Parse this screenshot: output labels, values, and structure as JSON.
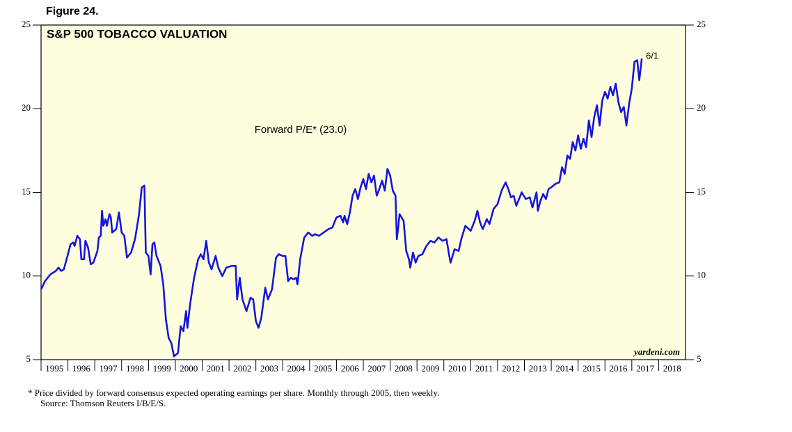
{
  "chart_data": {
    "type": "line",
    "figure_label": "Figure 24.",
    "title": "S&P 500 TOBACCO VALUATION",
    "annotation": "Forward P/E* (23.0)",
    "end_label": "6/1",
    "watermark": "yardeni.com",
    "footnotes": [
      "*  Price divided by forward consensus expected operating earnings per share. Monthly through 2005, then weekly.",
      "Source: Thomson Reuters I/B/E/S."
    ],
    "color": "#1515dc",
    "background": "#ffffe0",
    "xlim": [
      1995,
      2019
    ],
    "xticks": [
      1995,
      1996,
      1997,
      1998,
      1999,
      2000,
      2001,
      2002,
      2003,
      2004,
      2005,
      2006,
      2007,
      2008,
      2009,
      2010,
      2011,
      2012,
      2013,
      2014,
      2015,
      2016,
      2017,
      2018
    ],
    "ylim": [
      5,
      25
    ],
    "yticks": [
      5,
      10,
      15,
      20,
      25
    ],
    "x": [
      1995.0,
      1995.15,
      1995.35,
      1995.55,
      1995.65,
      1995.75,
      1995.85,
      1996.0,
      1996.1,
      1996.2,
      1996.25,
      1996.35,
      1996.45,
      1996.5,
      1996.6,
      1996.65,
      1996.75,
      1996.85,
      1996.95,
      1997.1,
      1997.15,
      1997.22,
      1997.27,
      1997.32,
      1997.4,
      1997.45,
      1997.55,
      1997.6,
      1997.65,
      1997.8,
      1997.9,
      1998.0,
      1998.1,
      1998.2,
      1998.35,
      1998.5,
      1998.65,
      1998.75,
      1998.85,
      1998.9,
      1999.0,
      1999.08,
      1999.15,
      1999.22,
      1999.3,
      1999.45,
      1999.55,
      1999.65,
      1999.75,
      1999.85,
      1999.95,
      2000.1,
      2000.2,
      2000.3,
      2000.4,
      2000.45,
      2000.55,
      2000.7,
      2000.85,
      2000.95,
      2001.05,
      2001.15,
      2001.25,
      2001.35,
      2001.5,
      2001.6,
      2001.75,
      2001.9,
      2002.1,
      2002.25,
      2002.3,
      2002.4,
      2002.5,
      2002.65,
      2002.8,
      2002.9,
      2003.0,
      2003.1,
      2003.2,
      2003.35,
      2003.45,
      2003.6,
      2003.75,
      2003.85,
      2004.0,
      2004.1,
      2004.2,
      2004.3,
      2004.4,
      2004.5,
      2004.55,
      2004.65,
      2004.8,
      2004.95,
      2005.1,
      2005.2,
      2005.35,
      2005.7,
      2005.85,
      2006.0,
      2006.15,
      2006.25,
      2006.3,
      2006.4,
      2006.5,
      2006.6,
      2006.7,
      2006.8,
      2006.9,
      2007.0,
      2007.1,
      2007.2,
      2007.3,
      2007.4,
      2007.5,
      2007.6,
      2007.7,
      2007.8,
      2007.9,
      2008.0,
      2008.1,
      2008.2,
      2008.25,
      2008.3,
      2008.35,
      2008.5,
      2008.6,
      2008.7,
      2008.75,
      2008.85,
      2008.95,
      2009.05,
      2009.2,
      2009.35,
      2009.5,
      2009.65,
      2009.8,
      2009.95,
      2010.1,
      2010.2,
      2010.25,
      2010.4,
      2010.55,
      2010.65,
      2010.8,
      2011.0,
      2011.15,
      2011.25,
      2011.35,
      2011.45,
      2011.6,
      2011.7,
      2011.85,
      2012.0,
      2012.15,
      2012.3,
      2012.4,
      2012.5,
      2012.6,
      2012.7,
      2012.8,
      2012.9,
      2013.05,
      2013.2,
      2013.3,
      2013.45,
      2013.5,
      2013.6,
      2013.7,
      2013.8,
      2013.9,
      2014.0,
      2014.15,
      2014.3,
      2014.4,
      2014.5,
      2014.6,
      2014.7,
      2014.8,
      2014.9,
      2015.0,
      2015.1,
      2015.2,
      2015.3,
      2015.4,
      2015.5,
      2015.6,
      2015.7,
      2015.8,
      2015.9,
      2016.0,
      2016.1,
      2016.2,
      2016.3,
      2016.4,
      2016.5,
      2016.6,
      2016.7,
      2016.8,
      2016.9,
      2017.0,
      2017.1,
      2017.2,
      2017.28,
      2017.37
    ],
    "values": [
      9.2,
      9.7,
      10.1,
      10.3,
      10.5,
      10.3,
      10.4,
      11.3,
      11.9,
      12.0,
      11.8,
      12.4,
      12.2,
      11.0,
      11.0,
      12.1,
      11.7,
      10.7,
      10.8,
      11.5,
      12.3,
      12.4,
      13.9,
      13.0,
      13.4,
      13.0,
      13.7,
      13.5,
      12.6,
      12.8,
      13.8,
      12.6,
      12.4,
      11.1,
      11.4,
      12.2,
      13.7,
      15.3,
      15.4,
      11.4,
      11.2,
      10.1,
      11.9,
      12.0,
      11.2,
      10.6,
      9.5,
      7.4,
      6.3,
      6.0,
      5.2,
      5.4,
      7.0,
      6.7,
      7.9,
      6.9,
      8.3,
      9.9,
      11.0,
      11.3,
      11.0,
      12.1,
      10.8,
      10.4,
      11.2,
      10.5,
      10.0,
      10.5,
      10.6,
      10.6,
      8.6,
      9.9,
      8.6,
      7.9,
      8.7,
      8.6,
      7.3,
      6.9,
      7.5,
      9.3,
      8.6,
      9.2,
      11.1,
      11.3,
      11.2,
      11.2,
      9.7,
      9.9,
      9.8,
      9.9,
      9.5,
      11.0,
      12.3,
      12.6,
      12.4,
      12.5,
      12.4,
      12.8,
      12.9,
      13.5,
      13.6,
      13.2,
      13.6,
      13.1,
      13.8,
      14.8,
      15.2,
      14.6,
      15.3,
      15.8,
      15.2,
      16.1,
      15.6,
      16.0,
      14.8,
      15.2,
      15.7,
      15.1,
      16.4,
      16.0,
      15.1,
      14.8,
      12.2,
      12.9,
      13.7,
      13.3,
      11.5,
      11.0,
      10.5,
      11.4,
      10.8,
      11.2,
      11.3,
      11.8,
      12.1,
      12.0,
      12.3,
      12.1,
      12.2,
      11.2,
      10.8,
      11.6,
      11.5,
      12.2,
      13.0,
      12.7,
      13.3,
      13.9,
      13.2,
      12.8,
      13.4,
      13.1,
      14.0,
      14.3,
      15.1,
      15.6,
      15.2,
      14.7,
      14.8,
      14.2,
      14.6,
      15.0,
      14.6,
      14.7,
      14.1,
      15.0,
      13.9,
      14.5,
      14.9,
      14.6,
      15.2,
      15.3,
      15.5,
      15.6,
      16.5,
      16.1,
      17.2,
      17.0,
      18.0,
      17.5,
      18.4,
      17.6,
      18.2,
      17.7,
      19.3,
      18.3,
      19.5,
      20.2,
      19.0,
      20.5,
      21.0,
      20.6,
      21.3,
      20.8,
      21.5,
      20.4,
      19.8,
      20.1,
      19.0,
      20.3,
      21.2,
      22.8,
      22.9,
      21.7,
      23.0
    ]
  }
}
